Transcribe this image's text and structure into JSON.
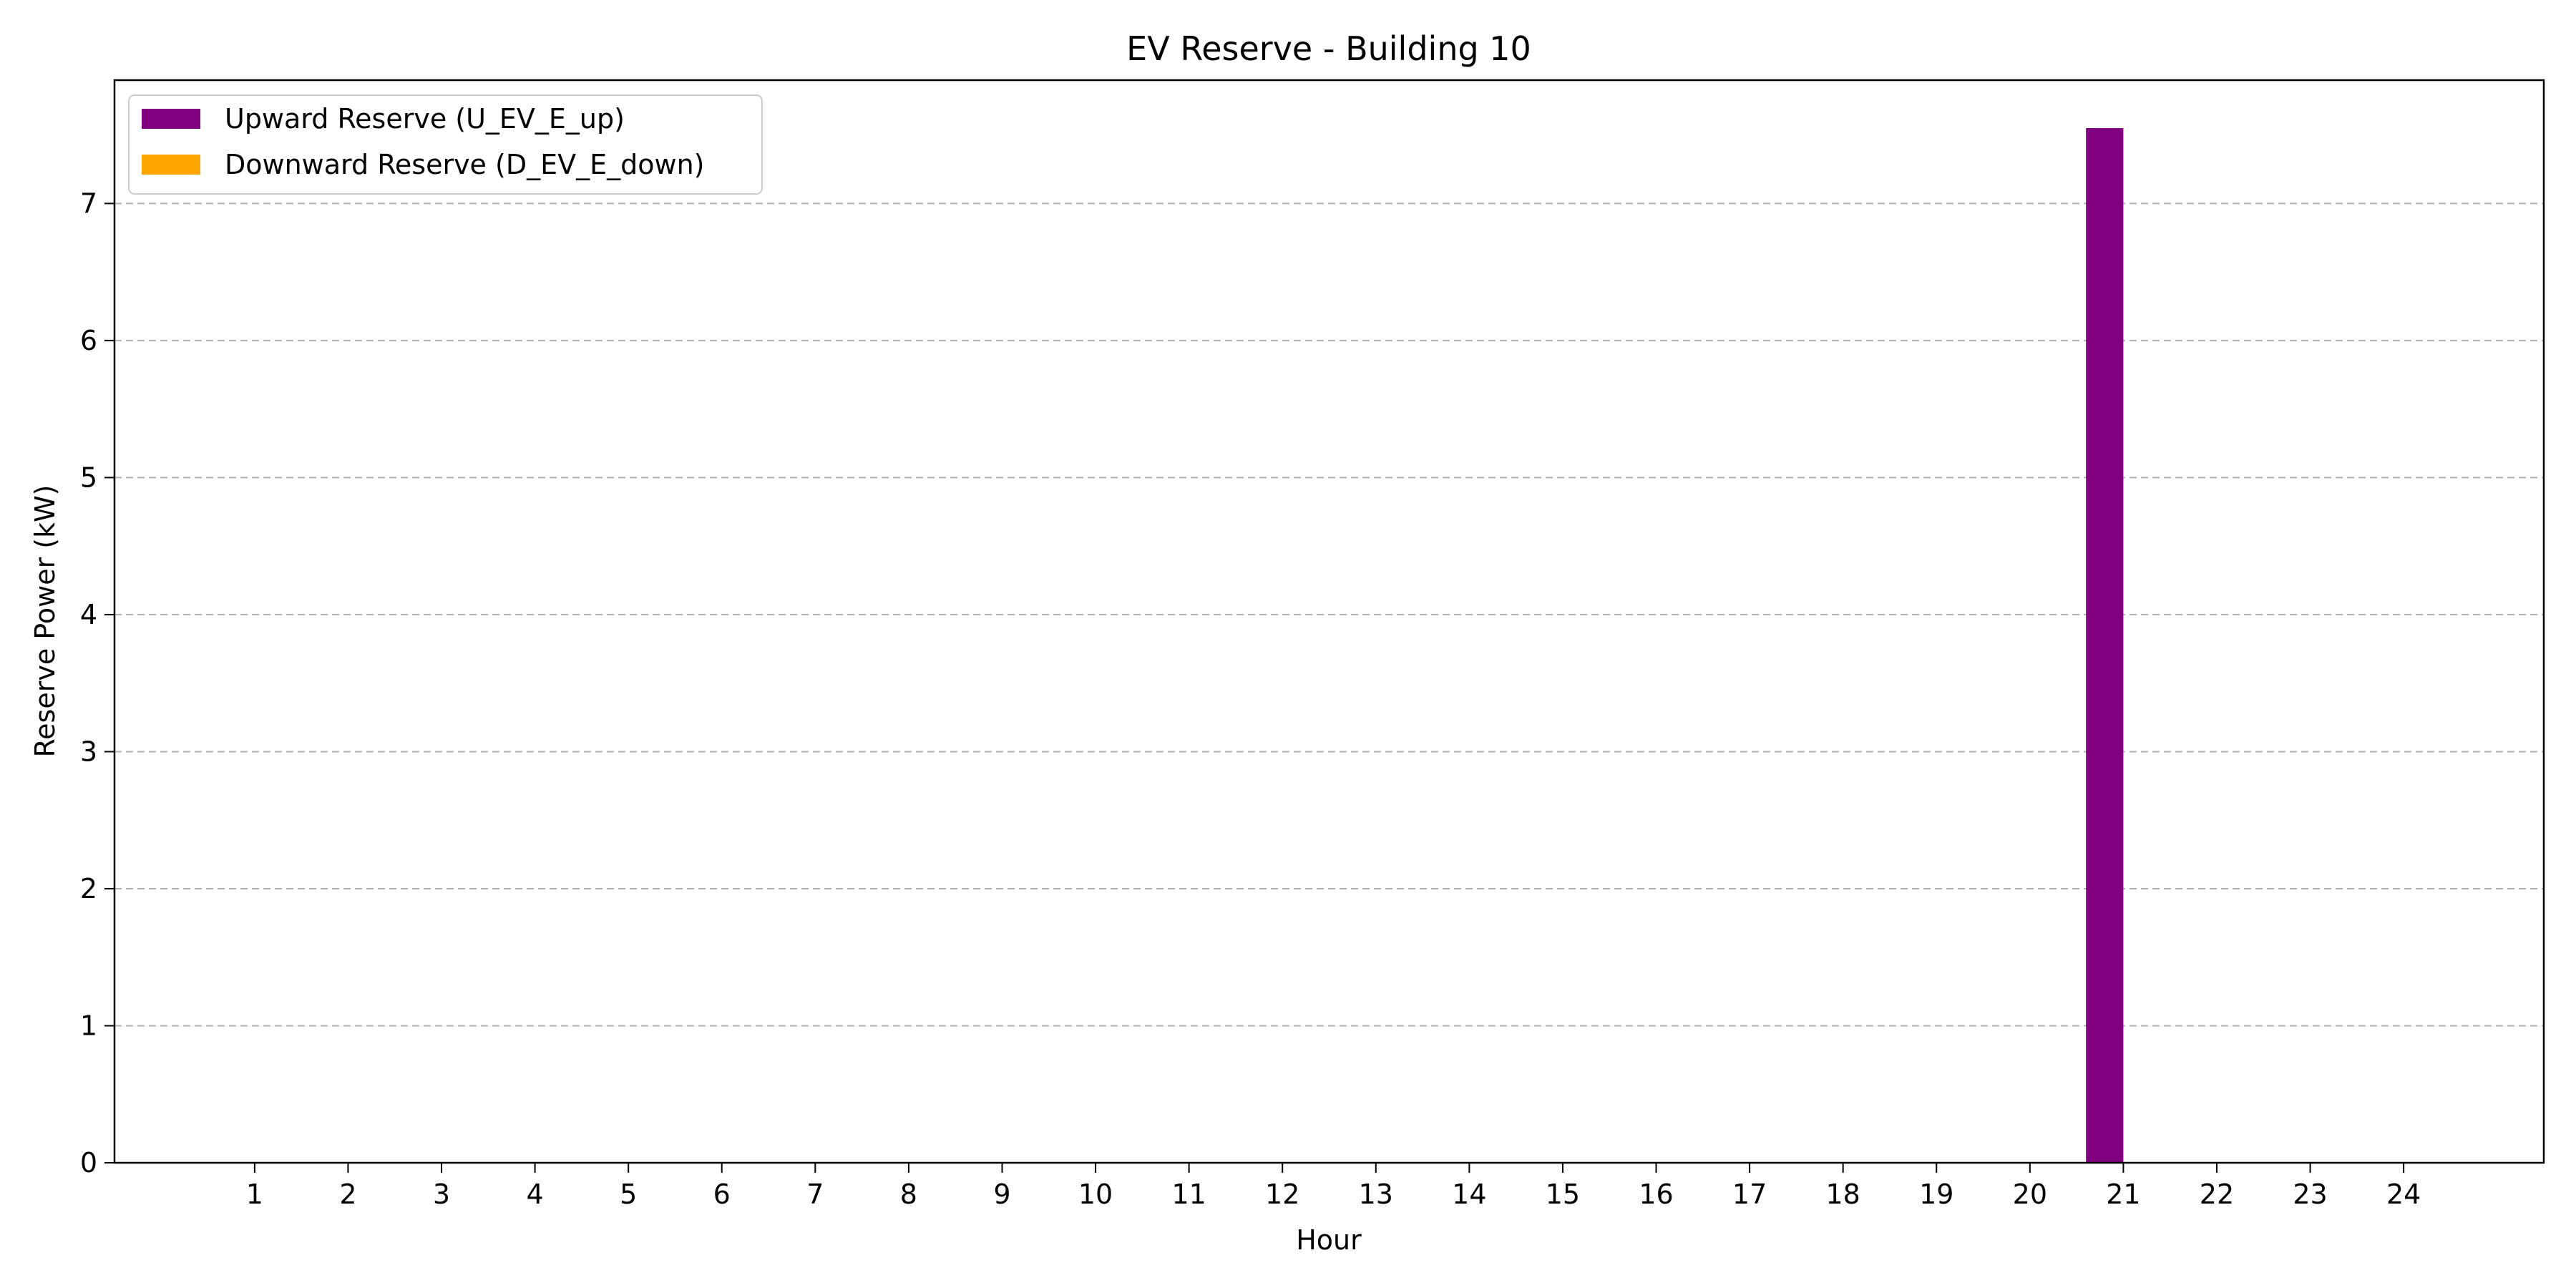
{
  "chart_data": {
    "type": "bar",
    "title": "EV Reserve - Building 10",
    "xlabel": "Hour",
    "ylabel": "Reserve Power (kW)",
    "categories": [
      "1",
      "2",
      "3",
      "4",
      "5",
      "6",
      "7",
      "8",
      "9",
      "10",
      "11",
      "12",
      "13",
      "14",
      "15",
      "16",
      "17",
      "18",
      "19",
      "20",
      "21",
      "22",
      "23",
      "24"
    ],
    "series": [
      {
        "name": "Upward Reserve (U_EV_E_up)",
        "color": "#800080",
        "values": [
          0,
          0,
          0,
          0,
          0,
          0,
          0,
          0,
          0,
          0,
          0,
          0,
          0,
          0,
          0,
          0,
          0,
          0,
          0,
          0,
          7.55,
          0,
          0,
          0
        ]
      },
      {
        "name": "Downward Reserve (D_EV_E_down)",
        "color": "#FFA500",
        "values": [
          0,
          0,
          0,
          0,
          0,
          0,
          0,
          0,
          0,
          0,
          0,
          0,
          0,
          0,
          0,
          0,
          0,
          0,
          0,
          0,
          0,
          0,
          0,
          0
        ]
      }
    ],
    "xlim": [
      -0.5,
      25.5
    ],
    "ylim": [
      0,
      7.9
    ],
    "yticks": [
      0,
      1,
      2,
      3,
      4,
      5,
      6,
      7
    ],
    "grid": "y-dashed",
    "legend": "top-left"
  }
}
